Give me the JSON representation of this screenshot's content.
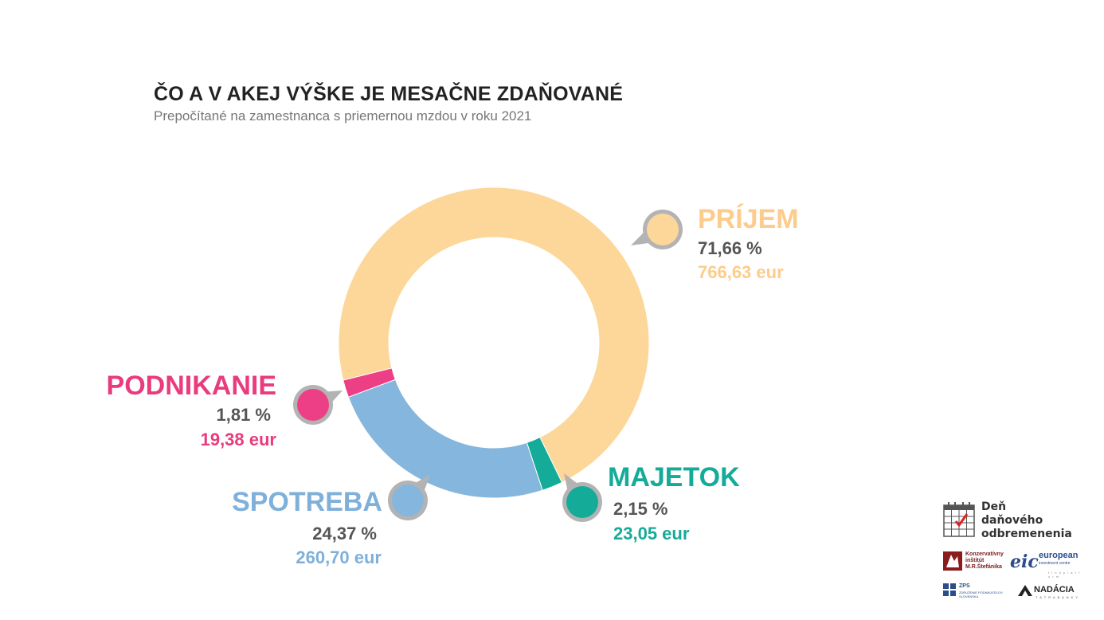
{
  "title": "ČO A V AKEJ VÝŠKE JE MESAČNE ZDAŇOVANÉ",
  "subtitle": "Prepočítané na zamestnanca s priemernou mzdou v roku 2021",
  "chart_data": {
    "type": "pie",
    "donut": true,
    "categories": [
      "PRÍJEM",
      "MAJETOK",
      "SPOTREBA",
      "PODNIKANIE"
    ],
    "values": [
      71.66,
      2.15,
      24.37,
      1.81
    ],
    "value_labels": [
      "71,66 %",
      "2,15 %",
      "24,37 %",
      "1,81 %"
    ],
    "amounts": [
      "766,63 eur",
      "23,05 eur",
      "260,70 eur",
      "19,38 eur"
    ],
    "colors": [
      "#FDD699",
      "#15AB99",
      "#85B6DD",
      "#EC3F86"
    ],
    "label_colors": [
      "#FDCC8C",
      "#15AB99",
      "#7FB0DA",
      "#E93B7D"
    ],
    "legend": "callouts"
  },
  "logos": {
    "ddo_line1": "Deň",
    "ddo_line2": "daňového",
    "ddo_line3": "odbremenenia",
    "kimrs": "Konzervatívny inštitút M.R.Štefánika",
    "eic_mark": "eic",
    "eic_name": "european",
    "eic_sub": "investment centre",
    "eic_sub2": "f i n d  p l a t f o r m",
    "zps": "ZPS",
    "zps_sub": "ZDRUŽENIE PODNIKATEĽOV SLOVENSKA",
    "nadacia": "NADÁCIA",
    "nadacia_sub": "T A T R A  B A N K Y"
  }
}
